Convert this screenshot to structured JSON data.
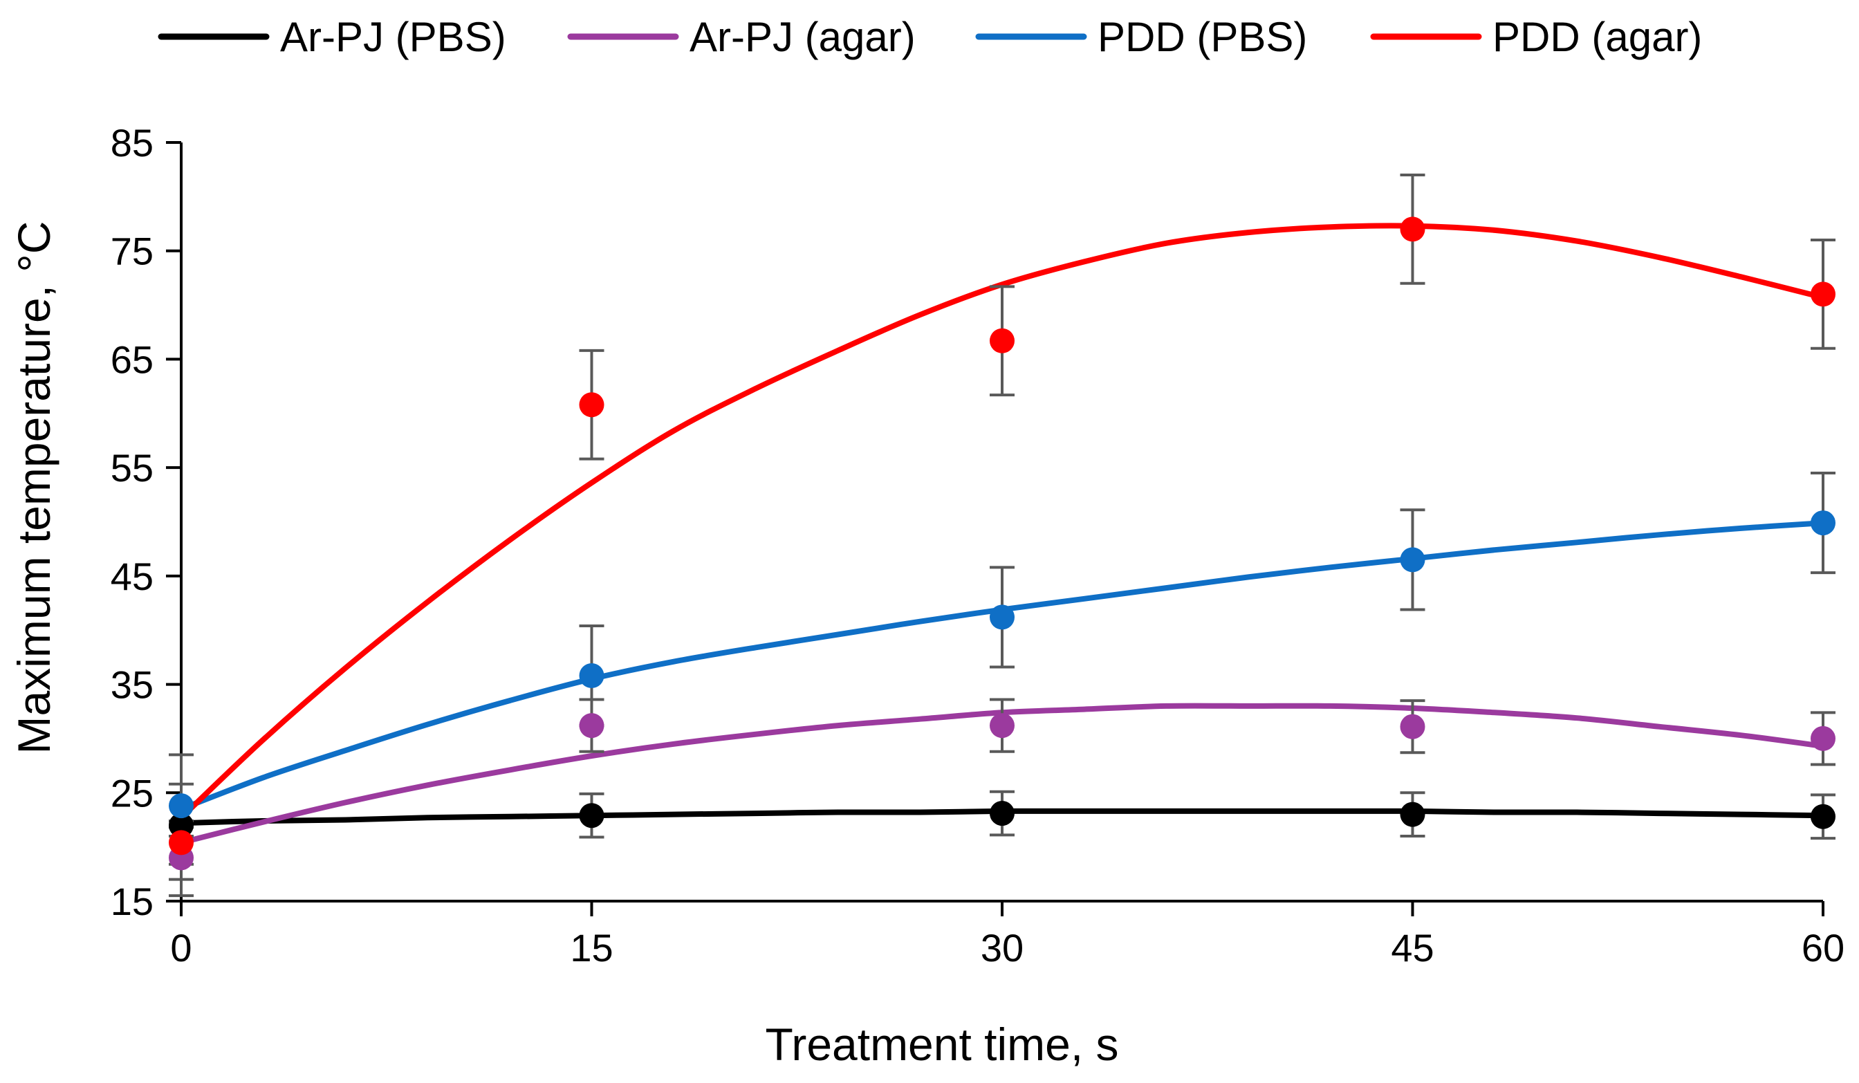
{
  "chart_data": {
    "type": "scatter",
    "title": "",
    "xlabel": "Treatment time, s",
    "ylabel": "Maximum temperature, °C",
    "xlim": [
      0,
      60
    ],
    "ylim": [
      15,
      85
    ],
    "xticks": [
      0,
      15,
      30,
      45,
      60
    ],
    "yticks": [
      15,
      25,
      35,
      45,
      55,
      65,
      75,
      85
    ],
    "grid": false,
    "legend_position": "top",
    "series": [
      {
        "name": "Ar-PJ (PBS)",
        "color": "#000000",
        "x": [
          0,
          15,
          30,
          45,
          60
        ],
        "y": [
          22,
          22.9,
          23.1,
          23,
          22.8
        ],
        "error": [
          6.5,
          2,
          2,
          2,
          2
        ],
        "trend": [
          [
            0,
            22.2
          ],
          [
            3,
            22.4
          ],
          [
            6,
            22.5
          ],
          [
            9,
            22.7
          ],
          [
            12,
            22.8
          ],
          [
            15,
            22.9
          ],
          [
            18,
            23.0
          ],
          [
            21,
            23.1
          ],
          [
            24,
            23.2
          ],
          [
            27,
            23.2
          ],
          [
            30,
            23.3
          ],
          [
            33,
            23.3
          ],
          [
            36,
            23.3
          ],
          [
            39,
            23.3
          ],
          [
            42,
            23.3
          ],
          [
            45,
            23.3
          ],
          [
            48,
            23.2
          ],
          [
            51,
            23.2
          ],
          [
            54,
            23.1
          ],
          [
            57,
            23.0
          ],
          [
            60,
            22.9
          ]
        ]
      },
      {
        "name": "Ar-PJ (agar)",
        "color": "#9B3A9E",
        "x": [
          0,
          15,
          30,
          45,
          60
        ],
        "y": [
          19,
          31.2,
          31.2,
          31.1,
          30
        ],
        "error": [
          2,
          2.4,
          2.4,
          2.4,
          2.4
        ],
        "trend": [
          [
            0,
            20.4
          ],
          [
            3,
            22.3
          ],
          [
            6,
            24.1
          ],
          [
            9,
            25.7
          ],
          [
            12,
            27.1
          ],
          [
            15,
            28.4
          ],
          [
            18,
            29.5
          ],
          [
            21,
            30.4
          ],
          [
            24,
            31.2
          ],
          [
            27,
            31.8
          ],
          [
            30,
            32.4
          ],
          [
            33,
            32.7
          ],
          [
            36,
            33.0
          ],
          [
            39,
            33.0
          ],
          [
            42,
            33.0
          ],
          [
            45,
            32.8
          ],
          [
            48,
            32.4
          ],
          [
            51,
            31.9
          ],
          [
            54,
            31.1
          ],
          [
            57,
            30.3
          ],
          [
            60,
            29.3
          ]
        ]
      },
      {
        "name": "PDD (PBS)",
        "color": "#0F6FC6",
        "x": [
          0,
          15,
          30,
          45,
          60
        ],
        "y": [
          23.8,
          35.8,
          41.2,
          46.5,
          49.9
        ],
        "error": [
          2,
          4.6,
          4.6,
          4.6,
          4.6
        ],
        "trend": [
          [
            0,
            23.5
          ],
          [
            3,
            26.4
          ],
          [
            6,
            28.9
          ],
          [
            9,
            31.3
          ],
          [
            12,
            33.5
          ],
          [
            15,
            35.5
          ],
          [
            18,
            37.1
          ],
          [
            21,
            38.4
          ],
          [
            24,
            39.6
          ],
          [
            27,
            40.8
          ],
          [
            30,
            41.9
          ],
          [
            33,
            42.9
          ],
          [
            36,
            43.9
          ],
          [
            39,
            44.9
          ],
          [
            42,
            45.8
          ],
          [
            45,
            46.6
          ],
          [
            48,
            47.4
          ],
          [
            51,
            48.1
          ],
          [
            54,
            48.8
          ],
          [
            57,
            49.4
          ],
          [
            60,
            49.9
          ]
        ]
      },
      {
        "name": "PDD (agar)",
        "color": "#FF0000",
        "x": [
          0,
          15,
          30,
          45,
          60
        ],
        "y": [
          20.4,
          60.8,
          66.7,
          77,
          71
        ],
        "error": [
          2,
          5,
          5,
          5,
          5
        ],
        "trend": [
          [
            0,
            22.7
          ],
          [
            3,
            29.9
          ],
          [
            6,
            36.5
          ],
          [
            9,
            42.6
          ],
          [
            12,
            48.3
          ],
          [
            15,
            53.6
          ],
          [
            18,
            58.4
          ],
          [
            21,
            62.3
          ],
          [
            24,
            65.8
          ],
          [
            27,
            69.1
          ],
          [
            30,
            71.9
          ],
          [
            33,
            74.0
          ],
          [
            36,
            75.7
          ],
          [
            39,
            76.7
          ],
          [
            42,
            77.2
          ],
          [
            45,
            77.3
          ],
          [
            48,
            76.9
          ],
          [
            51,
            75.9
          ],
          [
            54,
            74.4
          ],
          [
            57,
            72.6
          ],
          [
            60,
            70.7
          ]
        ]
      }
    ]
  }
}
